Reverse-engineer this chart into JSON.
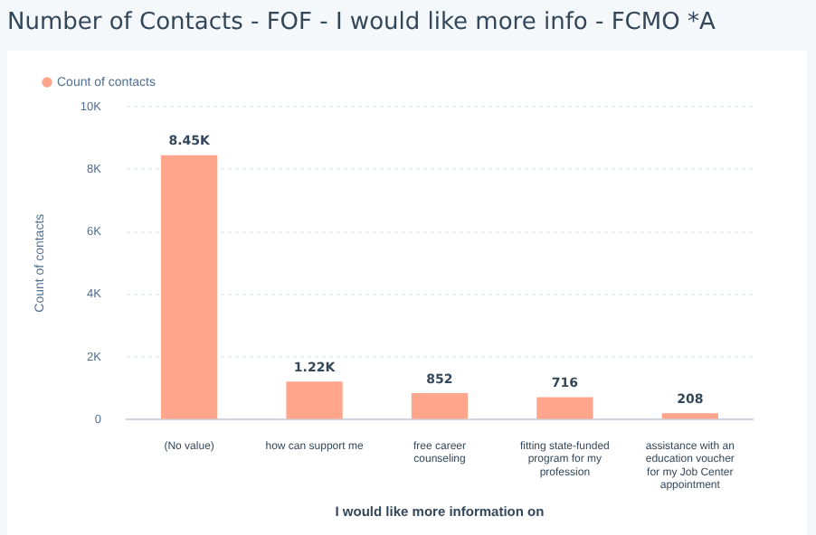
{
  "chart_data": {
    "type": "bar",
    "title": "Number of Contacts - FOF - I would like more info - FCMO *A",
    "xlabel": "I would like more information on",
    "ylabel": "Count of contacts",
    "categories": [
      "(No value)",
      "how can support me",
      "free career counseling",
      "fitting state-funded program for my profession",
      "assistance with an education voucher for my Job Center appointment"
    ],
    "series": [
      {
        "name": "Count of contacts",
        "color": "#ffa58c",
        "values": [
          8450,
          1220,
          852,
          716,
          208
        ],
        "value_labels": [
          "8.45K",
          "1.22K",
          "852",
          "716",
          "208"
        ]
      }
    ],
    "ylim": [
      0,
      10000
    ],
    "yticks": [
      {
        "value": 0,
        "label": "0"
      },
      {
        "value": 2000,
        "label": "2K"
      },
      {
        "value": 4000,
        "label": "4K"
      },
      {
        "value": 6000,
        "label": "6K"
      },
      {
        "value": 8000,
        "label": "8K"
      },
      {
        "value": 10000,
        "label": "10K"
      }
    ],
    "grid": "y",
    "legend": "top left"
  }
}
